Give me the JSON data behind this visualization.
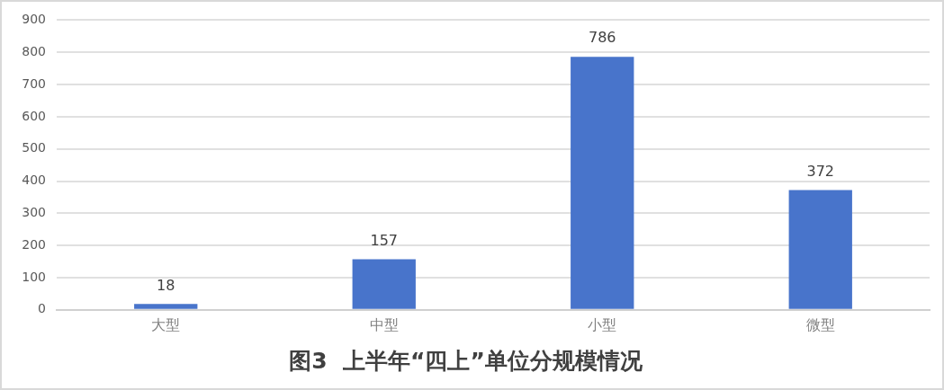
{
  "chart_data": {
    "type": "bar",
    "title": "图3  上半年“四上”单位分规模情况",
    "categories": [
      "大型",
      "中型",
      "小型",
      "微型"
    ],
    "values": [
      18,
      157,
      786,
      372
    ],
    "color": "#4874cb",
    "ylim": [
      0,
      900
    ],
    "yticks": [
      0,
      100,
      200,
      300,
      400,
      500,
      600,
      700,
      800,
      900
    ],
    "grid": "y",
    "data_labels": true
  }
}
